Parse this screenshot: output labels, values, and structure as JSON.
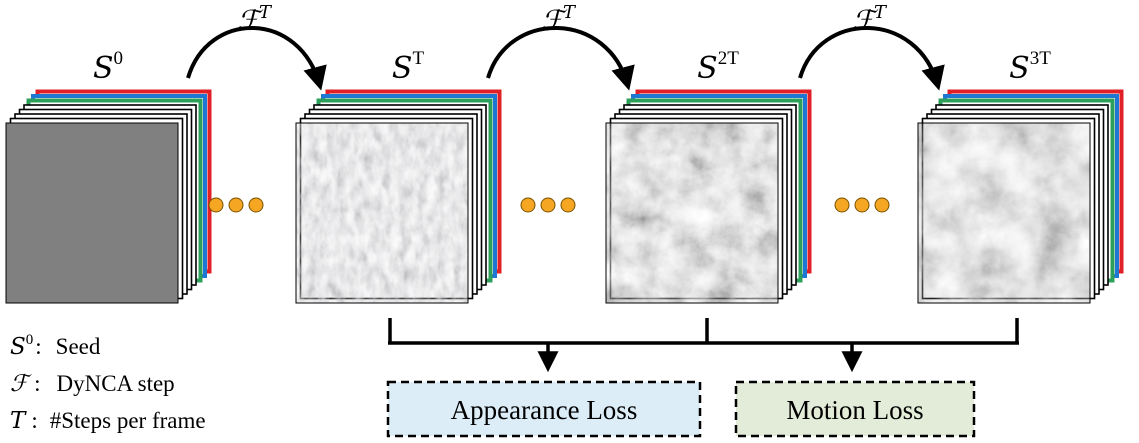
{
  "stages": [
    {
      "label": "S",
      "sup": "0",
      "texture": "seed"
    },
    {
      "label": "S",
      "sup": "T",
      "texture": "ripples"
    },
    {
      "label": "S",
      "sup": "2T",
      "texture": "smoke"
    },
    {
      "label": "S",
      "sup": "3T",
      "texture": "smoke-dense"
    }
  ],
  "transition": {
    "label": "ℱ",
    "sup": "T"
  },
  "dot_color": "#f5a623",
  "losses": {
    "appearance": {
      "label": "Appearance Loss",
      "fill": "#dcedf8"
    },
    "motion": {
      "label": "Motion Loss",
      "fill": "#e3ecd8"
    }
  },
  "legend": [
    {
      "symbol": "S",
      "sup": "0",
      "sep": ":",
      "text": "Seed"
    },
    {
      "symbol": "ℱ",
      "sup": "",
      "sep": ":",
      "text": "DyNCA step"
    },
    {
      "symbol": "T",
      "sup": "",
      "sep": ":",
      "text": "#Steps per frame"
    }
  ]
}
